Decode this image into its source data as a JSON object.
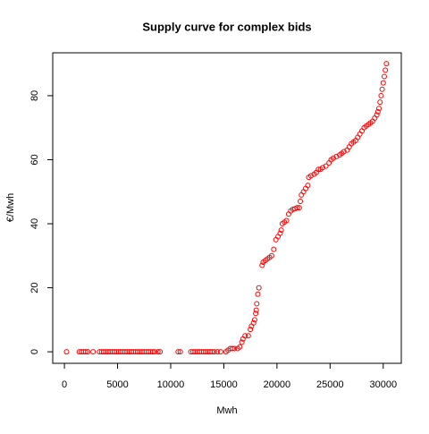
{
  "chart_data": {
    "type": "scatter",
    "title": "Supply curve for complex bids",
    "xlabel": "Mwh",
    "ylabel": "€/Mwh",
    "color": "#ff0000",
    "x": [
      200,
      1400,
      1600,
      1800,
      2000,
      2200,
      2700,
      3300,
      3500,
      3700,
      3900,
      4100,
      4300,
      4500,
      4700,
      4900,
      5100,
      5300,
      5500,
      5700,
      5900,
      6100,
      6300,
      6500,
      6700,
      6900,
      7100,
      7300,
      7500,
      7700,
      7900,
      8100,
      8300,
      8500,
      8800,
      9000,
      10700,
      10900,
      11900,
      12100,
      12300,
      12500,
      12700,
      12900,
      13100,
      13300,
      13500,
      13700,
      13900,
      14100,
      14400,
      14700,
      15200,
      15400,
      15600,
      15800,
      16000,
      16300,
      16500,
      16700,
      16800,
      17000,
      17300,
      17500,
      17600,
      17800,
      17900,
      18000,
      18050,
      18100,
      18200,
      18300,
      18600,
      18700,
      18900,
      19100,
      19300,
      19500,
      19700,
      19900,
      20100,
      20300,
      20400,
      20500,
      20700,
      20900,
      21100,
      21300,
      21500,
      21700,
      21900,
      22100,
      22200,
      22300,
      22500,
      22700,
      22900,
      23000,
      23200,
      23500,
      23700,
      23900,
      24100,
      24300,
      24600,
      24900,
      25100,
      25300,
      25600,
      25900,
      26100,
      26300,
      26600,
      26800,
      27000,
      27200,
      27400,
      27600,
      27800,
      28000,
      28200,
      28400,
      28600,
      28800,
      29000,
      29200,
      29400,
      29500,
      29600,
      29700,
      29800,
      29900,
      30000,
      30100,
      30200,
      30300
    ],
    "values": [
      0,
      0,
      0,
      0,
      0,
      0,
      0,
      0,
      0,
      0,
      0,
      0,
      0,
      0,
      0,
      0,
      0,
      0,
      0,
      0,
      0,
      0,
      0,
      0,
      0,
      0,
      0,
      0,
      0,
      0,
      0,
      0,
      0,
      0,
      0,
      0,
      0,
      0,
      0,
      0,
      0,
      0,
      0,
      0,
      0,
      0,
      0,
      0,
      0,
      0,
      0,
      0,
      0,
      0.5,
      1,
      1,
      1,
      1,
      1.5,
      3,
      4,
      5,
      5,
      7,
      8,
      9,
      10,
      12,
      13,
      15,
      18,
      20,
      27,
      28,
      28.5,
      29,
      29.5,
      30,
      32,
      35,
      36,
      37,
      38,
      40,
      40.5,
      41,
      43,
      44,
      44.5,
      44.7,
      45,
      45,
      47,
      49,
      50,
      51,
      52,
      54.5,
      55,
      55.5,
      56,
      57,
      57,
      57.5,
      58,
      59,
      60,
      60.5,
      61,
      61.5,
      62,
      62.5,
      63,
      64,
      65,
      65.5,
      66,
      67,
      68,
      69,
      70,
      70.5,
      71,
      71.5,
      72,
      73,
      74,
      75,
      76,
      78,
      80,
      82,
      84,
      86,
      88,
      90
    ],
    "xlim": [
      -1100,
      31700
    ],
    "ylim": [
      -3.6,
      93.4
    ],
    "xticks": [
      0,
      5000,
      10000,
      15000,
      20000,
      25000,
      30000
    ],
    "yticks": [
      0,
      20,
      40,
      60,
      80
    ]
  }
}
